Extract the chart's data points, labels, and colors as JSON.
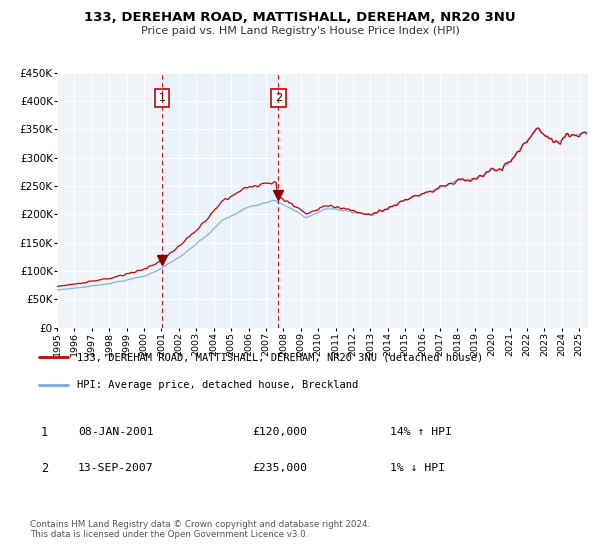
{
  "title": "133, DEREHAM ROAD, MATTISHALL, DEREHAM, NR20 3NU",
  "subtitle": "Price paid vs. HM Land Registry's House Price Index (HPI)",
  "ylim": [
    0,
    450000
  ],
  "yticks": [
    0,
    50000,
    100000,
    150000,
    200000,
    250000,
    300000,
    350000,
    400000,
    450000
  ],
  "ytick_labels": [
    "£0",
    "£50K",
    "£100K",
    "£150K",
    "£200K",
    "£250K",
    "£300K",
    "£350K",
    "£400K",
    "£450K"
  ],
  "xlim_start": 1995.0,
  "xlim_end": 2025.5,
  "xticks": [
    1995,
    1996,
    1997,
    1998,
    1999,
    2000,
    2001,
    2002,
    2003,
    2004,
    2005,
    2006,
    2007,
    2008,
    2009,
    2010,
    2011,
    2012,
    2013,
    2014,
    2015,
    2016,
    2017,
    2018,
    2019,
    2020,
    2021,
    2022,
    2023,
    2024,
    2025
  ],
  "red_line_color": "#cc0000",
  "blue_line_color": "#7aaadd",
  "shade_color": "#ddeeff",
  "marker1_x": 2001.03,
  "marker1_y": 120000,
  "marker2_x": 2007.71,
  "marker2_y": 235000,
  "vline1_x": 2001.03,
  "vline2_x": 2007.71,
  "legend_label_red": "133, DEREHAM ROAD, MATTISHALL, DEREHAM, NR20 3NU (detached house)",
  "legend_label_blue": "HPI: Average price, detached house, Breckland",
  "annotation1_label": "1",
  "annotation2_label": "2",
  "table_row1": [
    "1",
    "08-JAN-2001",
    "£120,000",
    "14% ↑ HPI"
  ],
  "table_row2": [
    "2",
    "13-SEP-2007",
    "£235,000",
    "1% ↓ HPI"
  ],
  "footnote": "Contains HM Land Registry data © Crown copyright and database right 2024.\nThis data is licensed under the Open Government Licence v3.0.",
  "background_color": "#ffffff",
  "plot_bg_color": "#f0f4f8"
}
